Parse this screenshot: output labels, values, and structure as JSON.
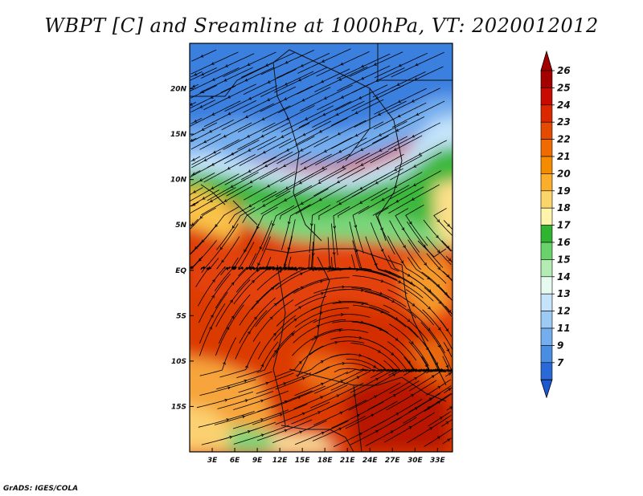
{
  "title": "WBPT [C] and Sreamline at 1000hPa, VT: 2020012012",
  "credit": "GrADS: IGES/COLA",
  "map": {
    "lon_range": [
      0,
      35
    ],
    "lat_range": [
      -20,
      25
    ],
    "y_ticks": [
      "20N",
      "15N",
      "10N",
      "5N",
      "EQ",
      "5S",
      "10S",
      "15S"
    ],
    "x_ticks": [
      "3E",
      "6E",
      "9E",
      "12E",
      "15E",
      "18E",
      "21E",
      "24E",
      "27E",
      "30E",
      "33E"
    ]
  },
  "colorbar": {
    "labels": [
      "26",
      "25",
      "24",
      "23",
      "22",
      "21",
      "20",
      "19",
      "18",
      "17",
      "16",
      "15",
      "14",
      "13",
      "12",
      "11",
      "9",
      "7"
    ],
    "colors": [
      "#a50000",
      "#c80a00",
      "#dc2800",
      "#e44a00",
      "#ef6a00",
      "#f58c00",
      "#faae2a",
      "#fcd56a",
      "#fff4ab",
      "#2fb52f",
      "#6ad26a",
      "#b2ecb2",
      "#e6fbf0",
      "#c5e4fb",
      "#9ccaf5",
      "#74aeee",
      "#4a8ee4",
      "#2a6ad8"
    ],
    "top_cap": "#a50000",
    "bottom_cap": "#1c58d0"
  }
}
